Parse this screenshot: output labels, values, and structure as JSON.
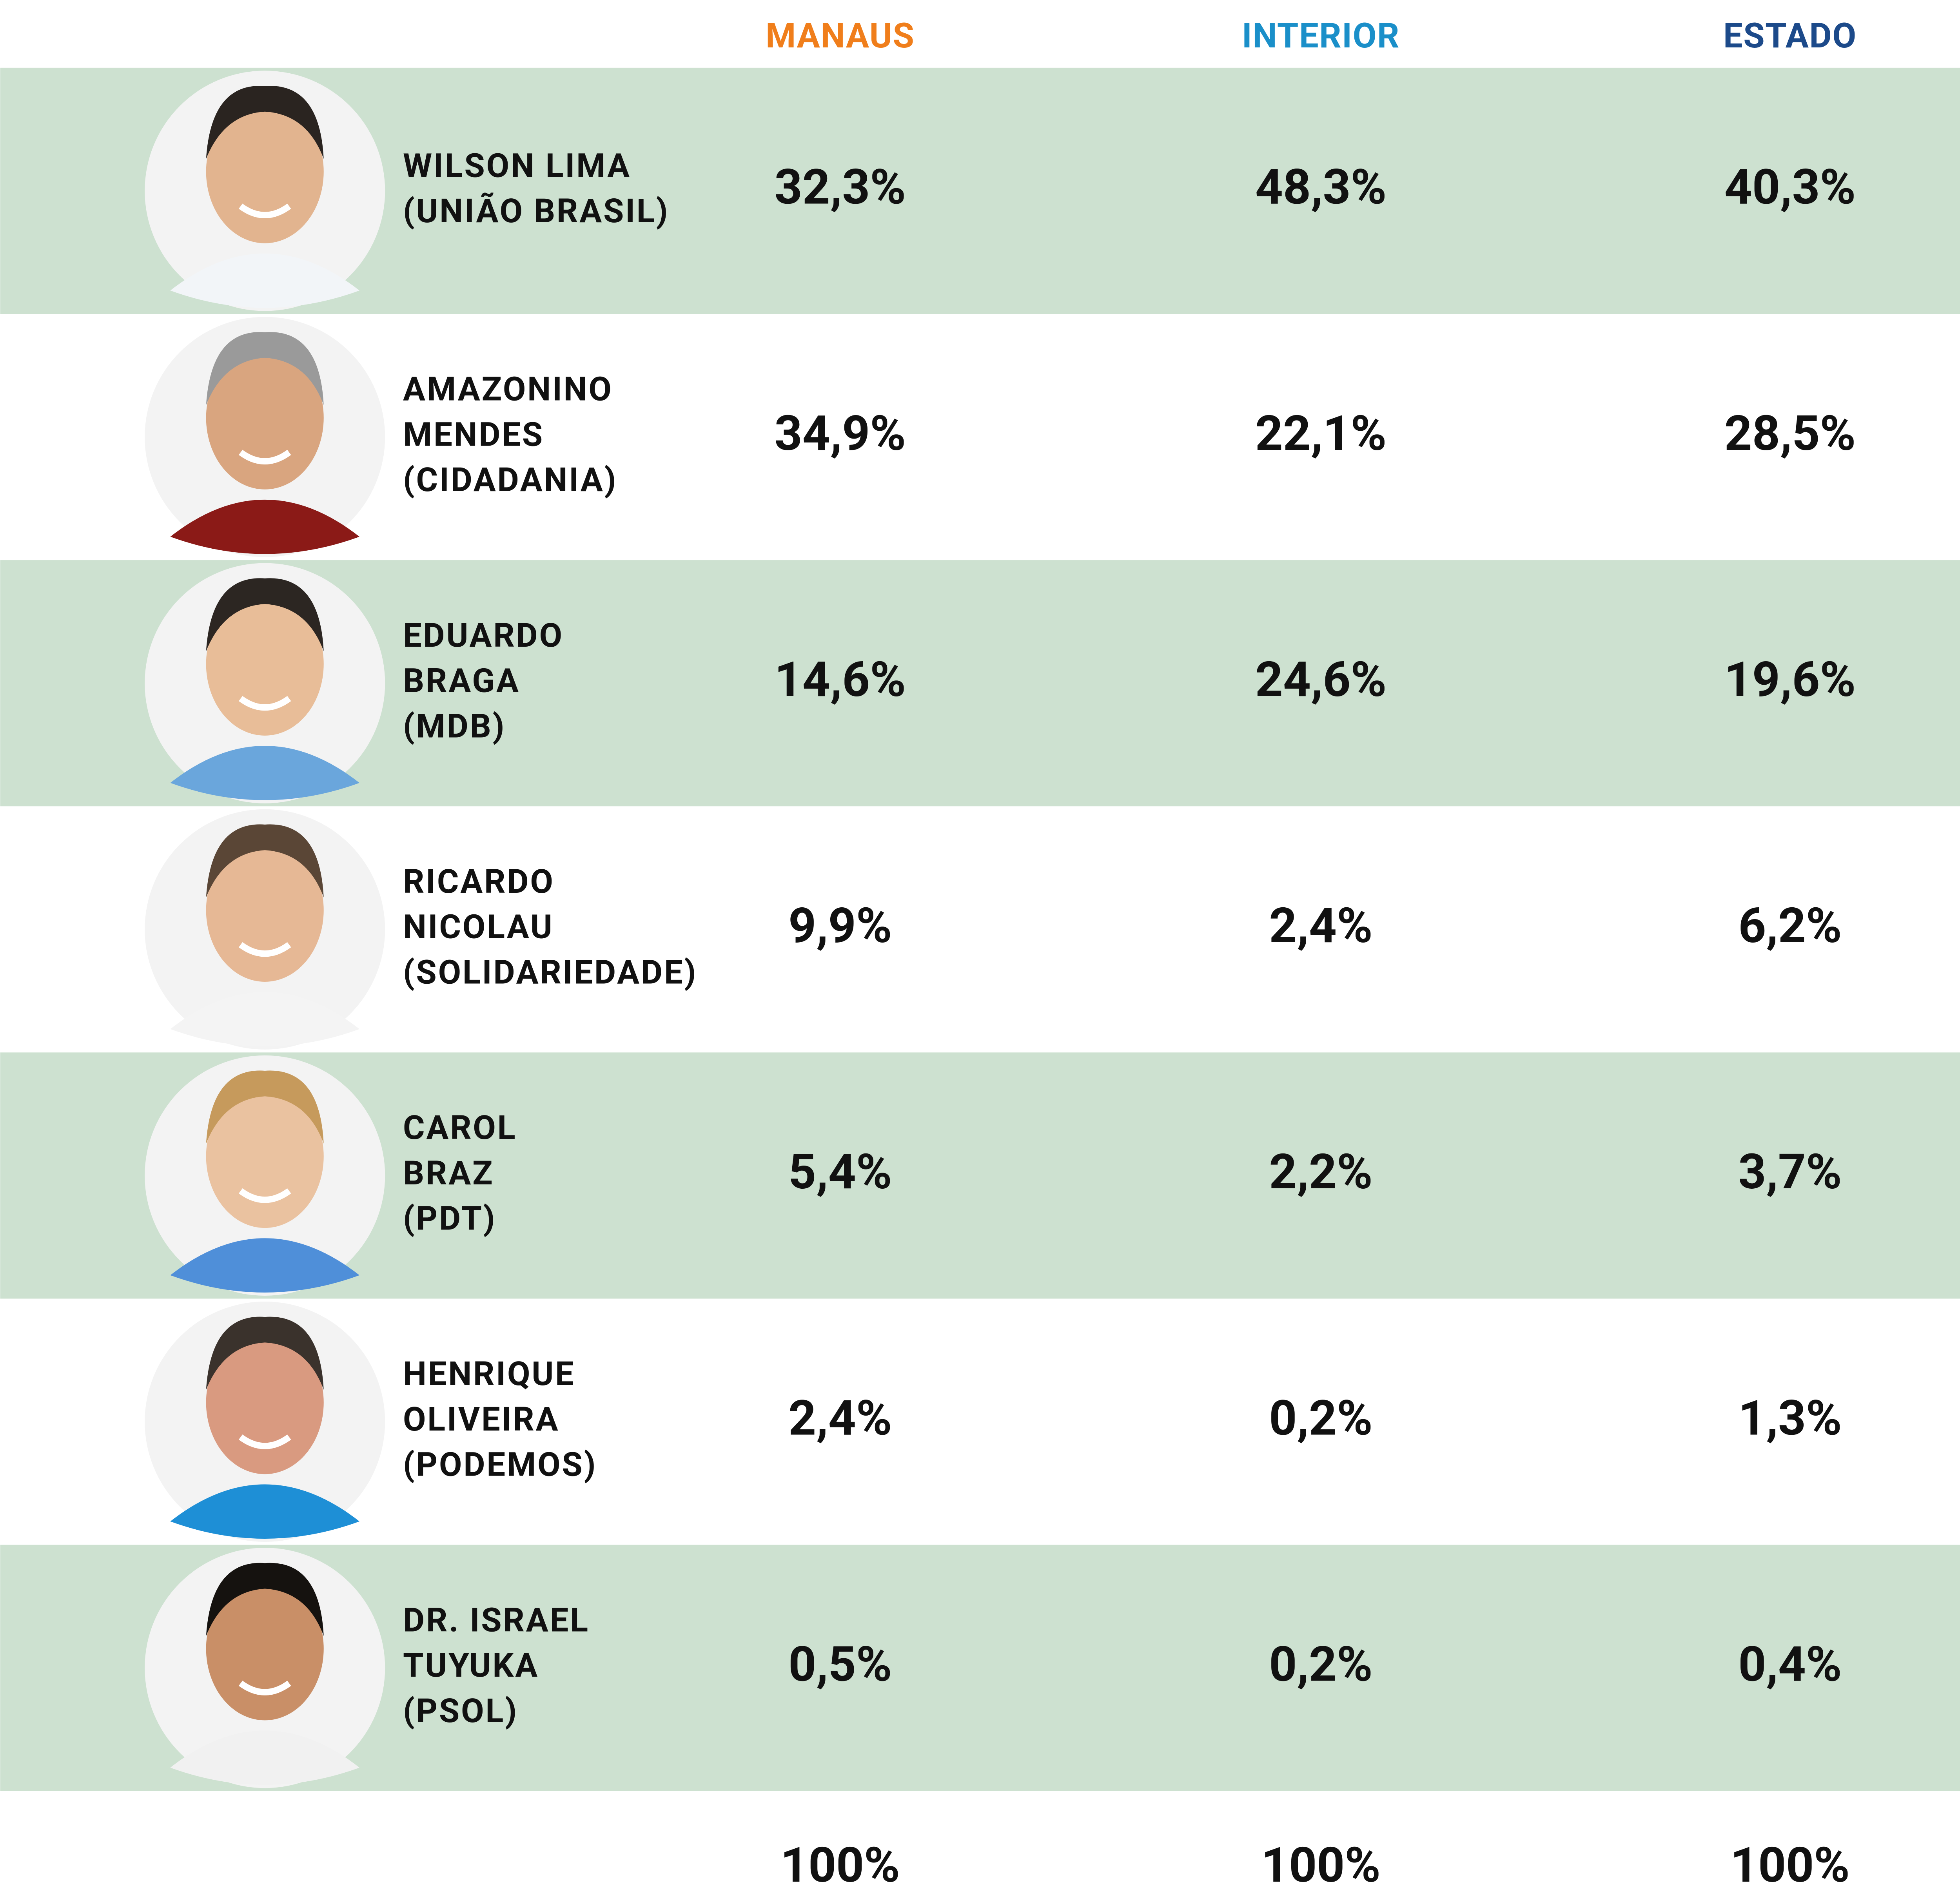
{
  "table": {
    "columns": [
      "MANAUS",
      "INTERIOR",
      "ESTADO"
    ],
    "rows": [
      {
        "name": [
          "WILSON LIMA",
          "(UNIÃO BRASIL)"
        ],
        "values": [
          "32,3%",
          "48,3%",
          "40,3%"
        ]
      },
      {
        "name": [
          "AMAZONINO",
          "MENDES",
          "(CIDADANIA)"
        ],
        "values": [
          "34,9%",
          "22,1%",
          "28,5%"
        ]
      },
      {
        "name": [
          "EDUARDO",
          "BRAGA",
          "(MDB)"
        ],
        "values": [
          "14,6%",
          "24,6%",
          "19,6%"
        ]
      },
      {
        "name": [
          "RICARDO",
          "NICOLAU",
          "(SOLIDARIEDADE)"
        ],
        "values": [
          "9,9%",
          "2,4%",
          "6,2%"
        ]
      },
      {
        "name": [
          "CAROL",
          "BRAZ",
          "(PDT)"
        ],
        "values": [
          "5,4%",
          "2,2%",
          "3,7%"
        ]
      },
      {
        "name": [
          "HENRIQUE",
          "OLIVEIRA",
          "(PODEMOS)"
        ],
        "values": [
          "2,4%",
          "0,2%",
          "1,3%"
        ]
      },
      {
        "name": [
          "DR. ISRAEL",
          "TUYUKA",
          "(PSOL)"
        ],
        "values": [
          "0,5%",
          "0,2%",
          "0,4%"
        ]
      }
    ],
    "total": [
      "100%",
      "100%",
      "100%"
    ]
  }
}
